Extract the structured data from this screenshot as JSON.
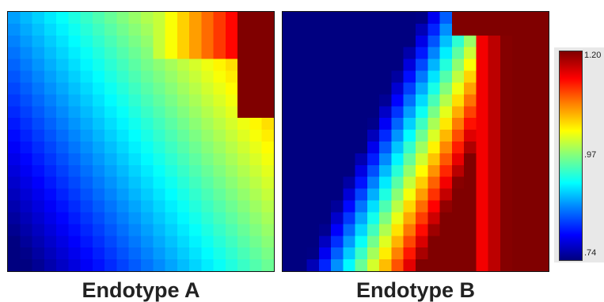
{
  "chart_data": [
    {
      "type": "heatmap",
      "title": "Endotype A",
      "xlabel": "",
      "ylabel": "",
      "grid": false,
      "grid_size": [
        22,
        22
      ],
      "zlim": [
        0.74,
        1.2
      ],
      "description_of_field": "Smooth field: low (~0.74) bottom-left rising toward upper-right; high block (~1.20) top-right corner",
      "field_params": {
        "boundary_slope": 1.25,
        "hot_corner_x": 0.87,
        "hot_corner_y": 0.42
      }
    },
    {
      "type": "heatmap",
      "title": "Endotype B",
      "xlabel": "",
      "ylabel": "",
      "grid": false,
      "grid_size": [
        22,
        22
      ],
      "zlim": [
        0.74,
        1.2
      ],
      "description_of_field": "Sharp diagonal transition: low (~0.74) left side, ~0.97 band through center, high (~1.20) right side",
      "field_params": {
        "boundary_slope": 0.55,
        "transition_center": 0.52
      }
    }
  ],
  "colorbar": {
    "min_label": ".74",
    "mid_label": ".97",
    "max_label": "1.20",
    "colormap": "jet"
  },
  "captions": {
    "a": "Endotype A",
    "b": "Endotype B"
  }
}
